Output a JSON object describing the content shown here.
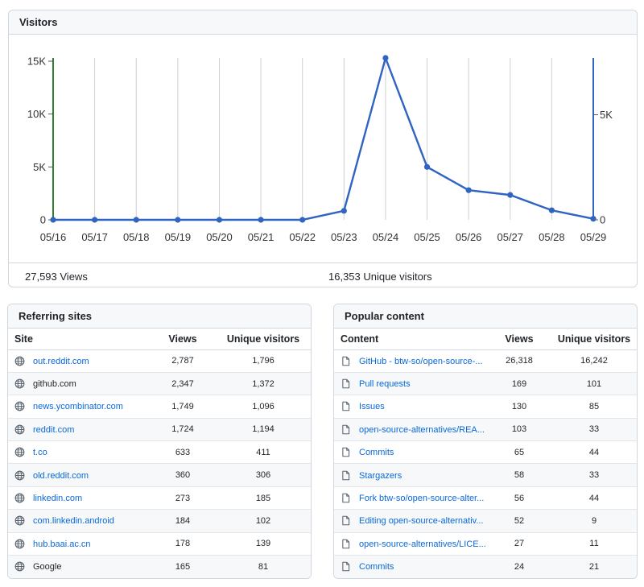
{
  "visitors": {
    "title": "Visitors",
    "views_summary": "27,593 Views",
    "unique_summary": "16,353 Unique visitors"
  },
  "chart_data": {
    "type": "line",
    "categories": [
      "05/16",
      "05/17",
      "05/18",
      "05/19",
      "05/20",
      "05/21",
      "05/22",
      "05/23",
      "05/24",
      "05/25",
      "05/26",
      "05/27",
      "05/28",
      "05/29"
    ],
    "series": [
      {
        "values": [
          0,
          0,
          0,
          0,
          0,
          0,
          0,
          850,
          15300,
          5000,
          2800,
          2350,
          900,
          100
        ]
      }
    ],
    "y_left_ticks": [
      {
        "v": 0,
        "label": "0"
      },
      {
        "v": 5000,
        "label": "5K"
      },
      {
        "v": 10000,
        "label": "10K"
      },
      {
        "v": 15000,
        "label": "15K"
      }
    ],
    "y_right_ticks": [
      {
        "v": 0,
        "label": "0"
      },
      {
        "v": 5000,
        "label": "5K"
      }
    ],
    "ylim_left": [
      0,
      15300
    ],
    "ylim_right": [
      0,
      7700
    ],
    "grid": "vertical",
    "colors": {
      "line": "#2f64c0",
      "left_axis": "#2f7d32",
      "right_axis": "#2f64c0",
      "grid": "#d0d0d0"
    }
  },
  "referrers": {
    "title": "Referring sites",
    "headers": [
      "Site",
      "Views",
      "Unique visitors"
    ],
    "rows": [
      {
        "name": "out.reddit.com",
        "views": "2,787",
        "unique": "1,796",
        "link": true
      },
      {
        "name": "github.com",
        "views": "2,347",
        "unique": "1,372",
        "link": false
      },
      {
        "name": "news.ycombinator.com",
        "views": "1,749",
        "unique": "1,096",
        "link": true
      },
      {
        "name": "reddit.com",
        "views": "1,724",
        "unique": "1,194",
        "link": true
      },
      {
        "name": "t.co",
        "views": "633",
        "unique": "411",
        "link": true
      },
      {
        "name": "old.reddit.com",
        "views": "360",
        "unique": "306",
        "link": true
      },
      {
        "name": "linkedin.com",
        "views": "273",
        "unique": "185",
        "link": true
      },
      {
        "name": "com.linkedin.android",
        "views": "184",
        "unique": "102",
        "link": true
      },
      {
        "name": "hub.baai.ac.cn",
        "views": "178",
        "unique": "139",
        "link": true
      },
      {
        "name": "Google",
        "views": "165",
        "unique": "81",
        "link": false
      }
    ]
  },
  "popular": {
    "title": "Popular content",
    "headers": [
      "Content",
      "Views",
      "Unique visitors"
    ],
    "rows": [
      {
        "name": "GitHub - btw-so/open-source-...",
        "views": "26,318",
        "unique": "16,242"
      },
      {
        "name": "Pull requests",
        "views": "169",
        "unique": "101"
      },
      {
        "name": "Issues",
        "views": "130",
        "unique": "85"
      },
      {
        "name": "open-source-alternatives/REA...",
        "views": "103",
        "unique": "33"
      },
      {
        "name": "Commits",
        "views": "65",
        "unique": "44"
      },
      {
        "name": "Stargazers",
        "views": "58",
        "unique": "33"
      },
      {
        "name": "Fork btw-so/open-source-alter...",
        "views": "56",
        "unique": "44"
      },
      {
        "name": "Editing open-source-alternativ...",
        "views": "52",
        "unique": "9"
      },
      {
        "name": "open-source-alternatives/LICE...",
        "views": "27",
        "unique": "11"
      },
      {
        "name": "Commits",
        "views": "24",
        "unique": "21"
      }
    ]
  },
  "icons": {
    "site": "globe-icon",
    "content": "file-icon"
  }
}
